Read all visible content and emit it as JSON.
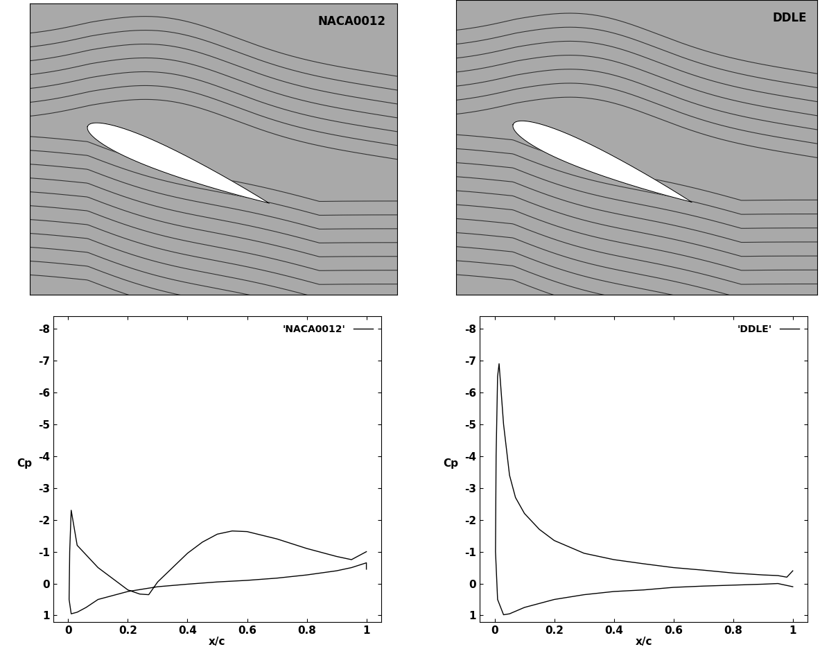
{
  "images": [
    {
      "label": "NACA0012"
    },
    {
      "label": "DDLE"
    }
  ],
  "chart_data": [
    {
      "type": "line",
      "x_label": "x/c",
      "y_label": "Cp",
      "legend": "upper right",
      "xlim": [
        -0.05,
        1.05
      ],
      "xticks": [
        0,
        0.2,
        0.4,
        0.6,
        0.8,
        1
      ],
      "ylim": [
        1.2,
        -8.4
      ],
      "yticks": [
        -8,
        -7,
        -6,
        -5,
        -4,
        -3,
        -2,
        -1,
        0,
        1
      ],
      "series": [
        {
          "name": "'NACA0012'",
          "color": "#000000",
          "x": [
            1.0,
            0.95,
            0.9,
            0.8,
            0.7,
            0.6,
            0.55,
            0.5,
            0.45,
            0.4,
            0.35,
            0.3,
            0.27,
            0.24,
            0.2,
            0.15,
            0.1,
            0.06,
            0.03,
            0.01,
            0.005,
            0.003,
            0.01,
            0.03,
            0.06,
            0.1,
            0.2,
            0.3,
            0.4,
            0.5,
            0.6,
            0.7,
            0.8,
            0.9,
            0.95,
            1.0,
            1.0
          ],
          "values": [
            -1.0,
            -0.75,
            -0.85,
            -1.1,
            -1.4,
            -1.63,
            -1.65,
            -1.55,
            -1.3,
            -0.95,
            -0.5,
            -0.05,
            0.35,
            0.33,
            0.2,
            -0.15,
            -0.5,
            -0.9,
            -1.2,
            -2.3,
            -1.0,
            0.5,
            0.95,
            0.9,
            0.75,
            0.5,
            0.25,
            0.1,
            0.02,
            -0.05,
            -0.1,
            -0.17,
            -0.27,
            -0.4,
            -0.5,
            -0.65,
            -0.45
          ]
        }
      ]
    },
    {
      "type": "line",
      "x_label": "x/c",
      "y_label": "Cp",
      "legend": "upper right",
      "xlim": [
        -0.05,
        1.05
      ],
      "xticks": [
        0,
        0.2,
        0.4,
        0.6,
        0.8,
        1
      ],
      "ylim": [
        1.2,
        -8.4
      ],
      "yticks": [
        -8,
        -7,
        -6,
        -5,
        -4,
        -3,
        -2,
        -1,
        0,
        1
      ],
      "series": [
        {
          "name": "'DDLE'",
          "color": "#000000",
          "x": [
            1.0,
            0.98,
            0.95,
            0.9,
            0.8,
            0.7,
            0.6,
            0.5,
            0.4,
            0.3,
            0.2,
            0.15,
            0.1,
            0.07,
            0.05,
            0.03,
            0.015,
            0.01,
            0.005,
            0.003,
            0.01,
            0.03,
            0.05,
            0.1,
            0.2,
            0.3,
            0.4,
            0.5,
            0.6,
            0.7,
            0.8,
            0.9,
            0.95,
            1.0
          ],
          "values": [
            -0.4,
            -0.2,
            -0.25,
            -0.27,
            -0.33,
            -0.42,
            -0.5,
            -0.62,
            -0.75,
            -0.95,
            -1.35,
            -1.7,
            -2.2,
            -2.7,
            -3.4,
            -5.0,
            -6.9,
            -6.5,
            -4.0,
            -1.0,
            0.5,
            0.98,
            0.95,
            0.75,
            0.5,
            0.35,
            0.25,
            0.2,
            0.12,
            0.08,
            0.05,
            0.02,
            0.0,
            0.1
          ]
        }
      ]
    }
  ]
}
